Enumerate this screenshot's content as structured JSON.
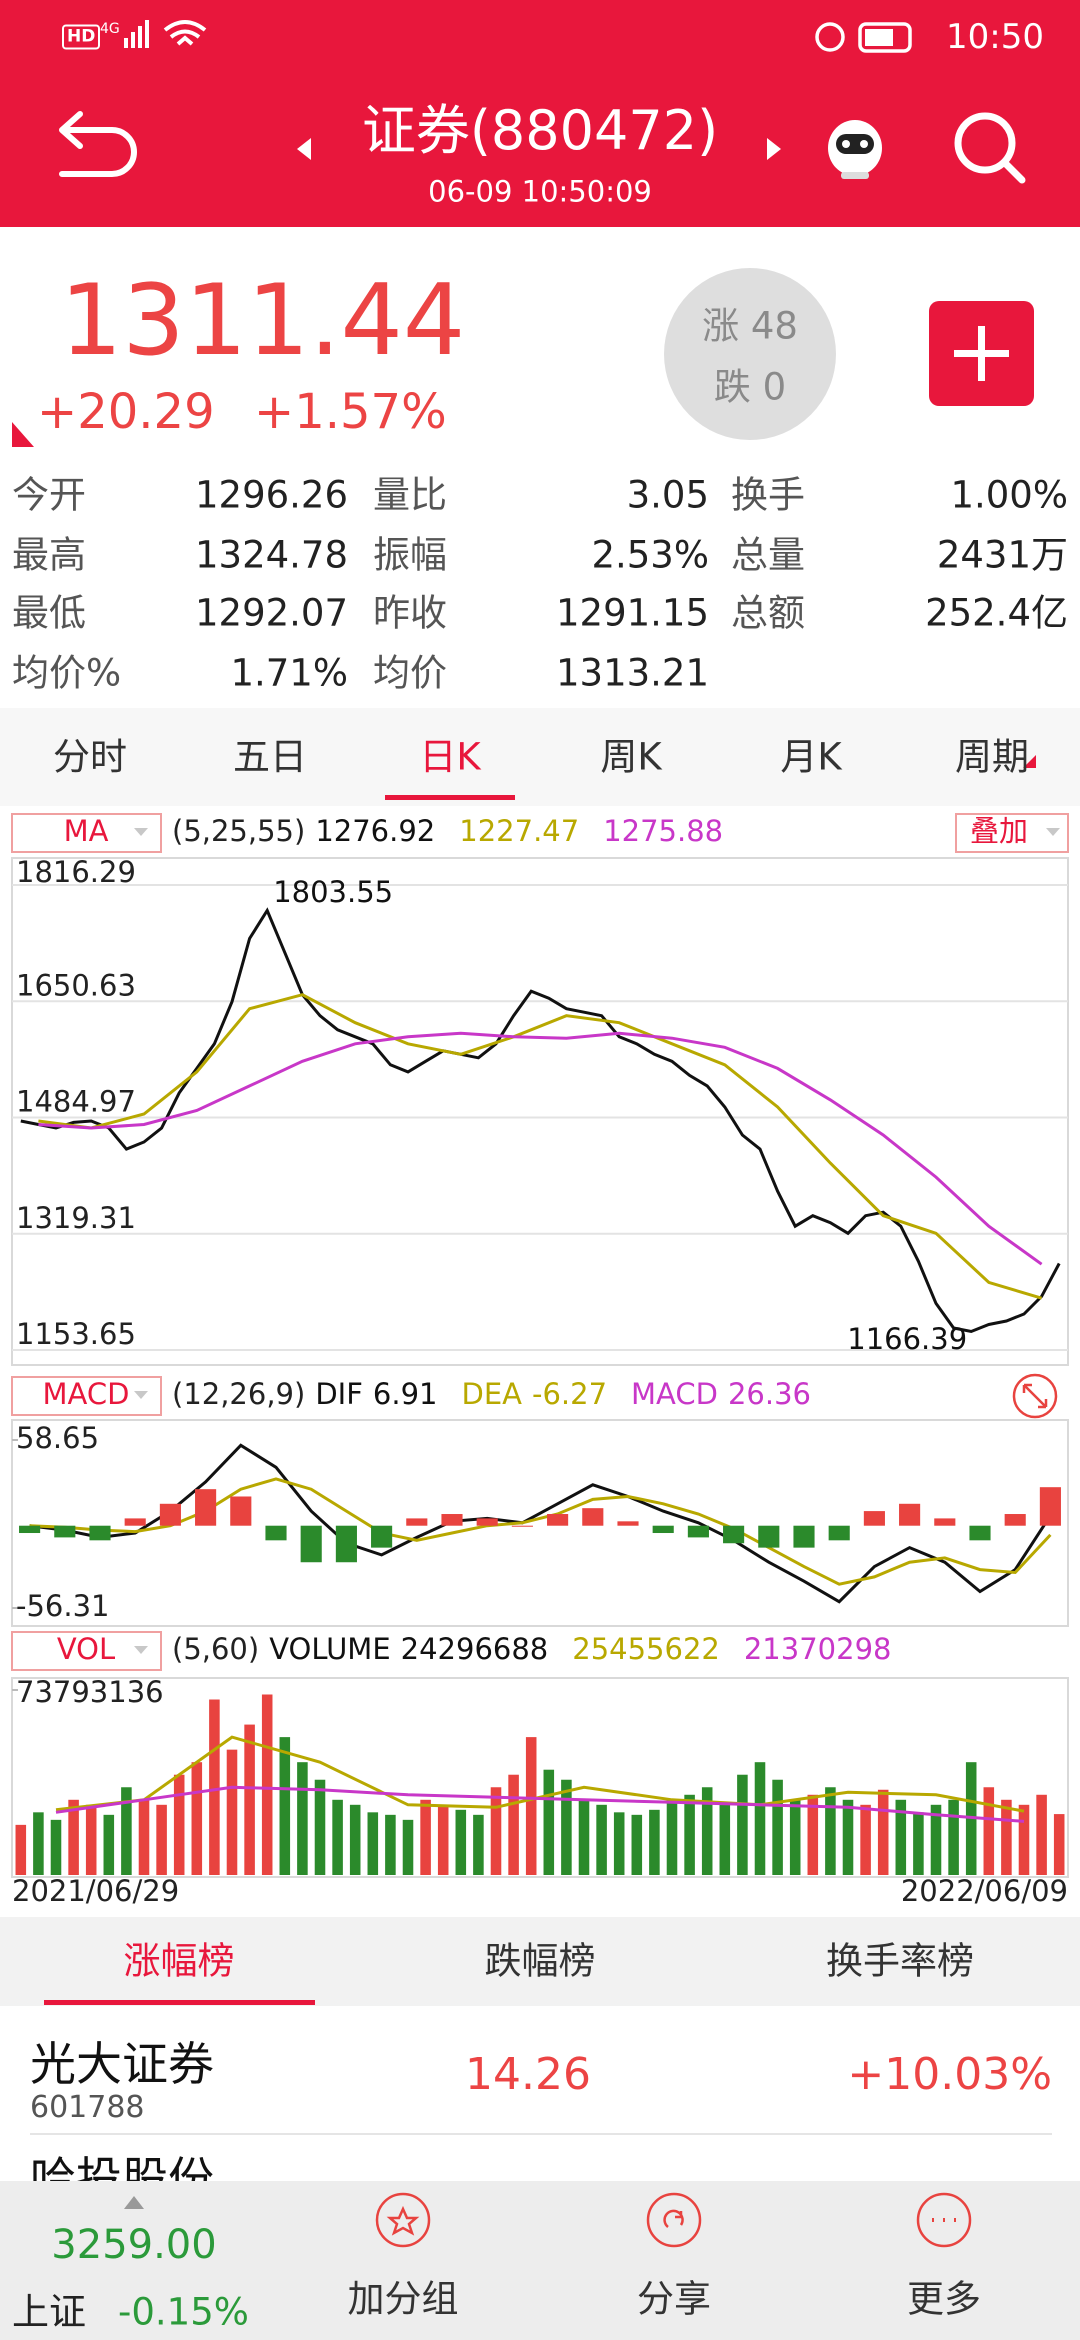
{
  "status_bar": {
    "hd": "HD",
    "network": "4G",
    "time": "10:50"
  },
  "header": {
    "title": "证券(880472)",
    "timestamp": "06-09 10:50:09"
  },
  "quote": {
    "price": "1311.44",
    "change": "+20.29",
    "change_percent": "+1.57%",
    "rise": "涨 48",
    "fall": "跌 0"
  },
  "stats": [
    [
      "今开",
      "1296.26"
    ],
    [
      "量比",
      "3.05"
    ],
    [
      "换手",
      "1.00%"
    ],
    [
      "最高",
      "1324.78"
    ],
    [
      "振幅",
      "2.53%"
    ],
    [
      "总量",
      "2431万"
    ],
    [
      "最低",
      "1292.07"
    ],
    [
      "昨收",
      "1291.15"
    ],
    [
      "总额",
      "252.4亿"
    ],
    [
      "均价%",
      "1.71%"
    ],
    [
      "均价",
      "1313.21"
    ]
  ],
  "period_tabs": {
    "items": [
      "分时",
      "五日",
      "日K",
      "周K",
      "月K",
      "周期"
    ],
    "active": 2
  },
  "chart_data": [
    {
      "type": "line",
      "indicator": "MA",
      "params": "(5,25,55)",
      "overlay": "叠加",
      "grid": true,
      "ylim": [
        1153.65,
        1816.29
      ],
      "yticks": [
        1153.65,
        1319.31,
        1484.97,
        1650.63,
        1816.29
      ],
      "series": [
        {
          "color": "#111111",
          "values": [
            1480,
            1475,
            1470,
            1478,
            1480,
            1470,
            1440,
            1450,
            1470,
            1520,
            1555,
            1590,
            1650,
            1740,
            1780,
            1720,
            1660,
            1630,
            1610,
            1600,
            1590,
            1560,
            1550,
            1565,
            1580,
            1575,
            1570,
            1590,
            1630,
            1665,
            1655,
            1640,
            1635,
            1630,
            1600,
            1590,
            1575,
            1565,
            1545,
            1530,
            1500,
            1460,
            1440,
            1380,
            1330,
            1345,
            1335,
            1320,
            1345,
            1350,
            1330,
            1280,
            1220,
            1185,
            1180,
            1190,
            1195,
            1205,
            1230,
            1276.92
          ]
        },
        {
          "color": "#b8a800",
          "values": [
            1480,
            1470,
            1490,
            1550,
            1640,
            1660,
            1620,
            1590,
            1575,
            1600,
            1630,
            1620,
            1590,
            1560,
            1500,
            1420,
            1345,
            1320,
            1250,
            1227.47
          ]
        },
        {
          "color": "#c837c8",
          "values": [
            1475,
            1470,
            1475,
            1495,
            1530,
            1565,
            1590,
            1600,
            1605,
            1600,
            1598,
            1605,
            1598,
            1585,
            1555,
            1510,
            1460,
            1400,
            1330,
            1275.88
          ]
        }
      ],
      "annotations": [
        1803.55,
        1166.39
      ]
    },
    {
      "type": "macd",
      "indicator": "MACD",
      "params": "(12,26,9)",
      "grid": false,
      "ylim": [
        -56.31,
        58.65
      ],
      "yticks": [
        58.65,
        -56.31
      ],
      "bar_colors": {
        "up": "#e8433f",
        "down": "#2b8a2b"
      },
      "series": [
        {
          "name": "DIF",
          "color": "#111111",
          "values": [
            0,
            -3,
            -8,
            -5,
            10,
            30,
            55,
            40,
            10,
            -12,
            -20,
            -8,
            3,
            5,
            2,
            15,
            28,
            20,
            10,
            2,
            -10,
            -25,
            -38,
            -52,
            -28,
            -15,
            -25,
            -45,
            -30,
            6.91
          ]
        },
        {
          "name": "DEA",
          "color": "#b8a800",
          "values": [
            0,
            -1,
            -3,
            -4,
            0,
            10,
            25,
            32,
            25,
            10,
            -5,
            -10,
            -5,
            0,
            2,
            8,
            18,
            20,
            15,
            8,
            -2,
            -15,
            -28,
            -40,
            -35,
            -25,
            -22,
            -30,
            -32,
            -6.27
          ]
        },
        {
          "name": "MACD",
          "color": "#c837c8",
          "kind": "bar",
          "values": [
            -5,
            -8,
            -10,
            5,
            15,
            25,
            20,
            -10,
            -25,
            -25,
            -15,
            5,
            8,
            5,
            0,
            8,
            12,
            3,
            -5,
            -8,
            -12,
            -15,
            -15,
            -10,
            10,
            15,
            5,
            -10,
            8,
            26.36
          ]
        }
      ]
    },
    {
      "type": "bar",
      "indicator": "VOL",
      "params": "(5,60)",
      "grid": false,
      "ylim": [
        0,
        73793136
      ],
      "yticks": [
        73793136
      ],
      "bar_colors": {
        "up": "#e8433f",
        "down": "#2b8a2b"
      },
      "x_start": "2021/06/29",
      "x_end": "2022/06/09",
      "series": [
        {
          "name": "VOLUME",
          "color": "#111111",
          "kind": "bar",
          "values": [
            20000000,
            25000000,
            22000000,
            30000000,
            28000000,
            24000000,
            35000000,
            30000000,
            28000000,
            40000000,
            45000000,
            70000000,
            50000000,
            60000000,
            72000000,
            55000000,
            45000000,
            38000000,
            30000000,
            28000000,
            25000000,
            24000000,
            22000000,
            30000000,
            28000000,
            26000000,
            24000000,
            35000000,
            40000000,
            55000000,
            42000000,
            38000000,
            30000000,
            28000000,
            25000000,
            24000000,
            26000000,
            30000000,
            32000000,
            35000000,
            28000000,
            40000000,
            45000000,
            38000000,
            30000000,
            32000000,
            35000000,
            30000000,
            28000000,
            34000000,
            30000000,
            25000000,
            28000000,
            30000000,
            45000000,
            35000000,
            30000000,
            28000000,
            32000000,
            24296688
          ]
        },
        {
          "color": "#b8a800",
          "values": [
            26000000,
            30000000,
            55000000,
            45000000,
            28000000,
            27000000,
            35000000,
            30000000,
            28000000,
            33000000,
            32000000,
            25455622
          ]
        },
        {
          "color": "#c837c8",
          "values": [
            25000000,
            30000000,
            35000000,
            34000000,
            32000000,
            31000000,
            30000000,
            29000000,
            28000000,
            27000000,
            24000000,
            21370298
          ]
        }
      ]
    }
  ],
  "ranking_tabs": {
    "items": [
      "涨幅榜",
      "跌幅榜",
      "换手率榜"
    ],
    "active": 0
  },
  "ranking": [
    {
      "name": "光大证券",
      "code": "601788",
      "price": "14.26",
      "change_percent": "+10.03%"
    },
    {
      "name": "哈投股份"
    }
  ],
  "bottom_bar": {
    "index_value": "3259.00",
    "index_name": "上证",
    "index_change": "-0.15%",
    "actions": [
      "加分组",
      "分享",
      "更多"
    ]
  }
}
